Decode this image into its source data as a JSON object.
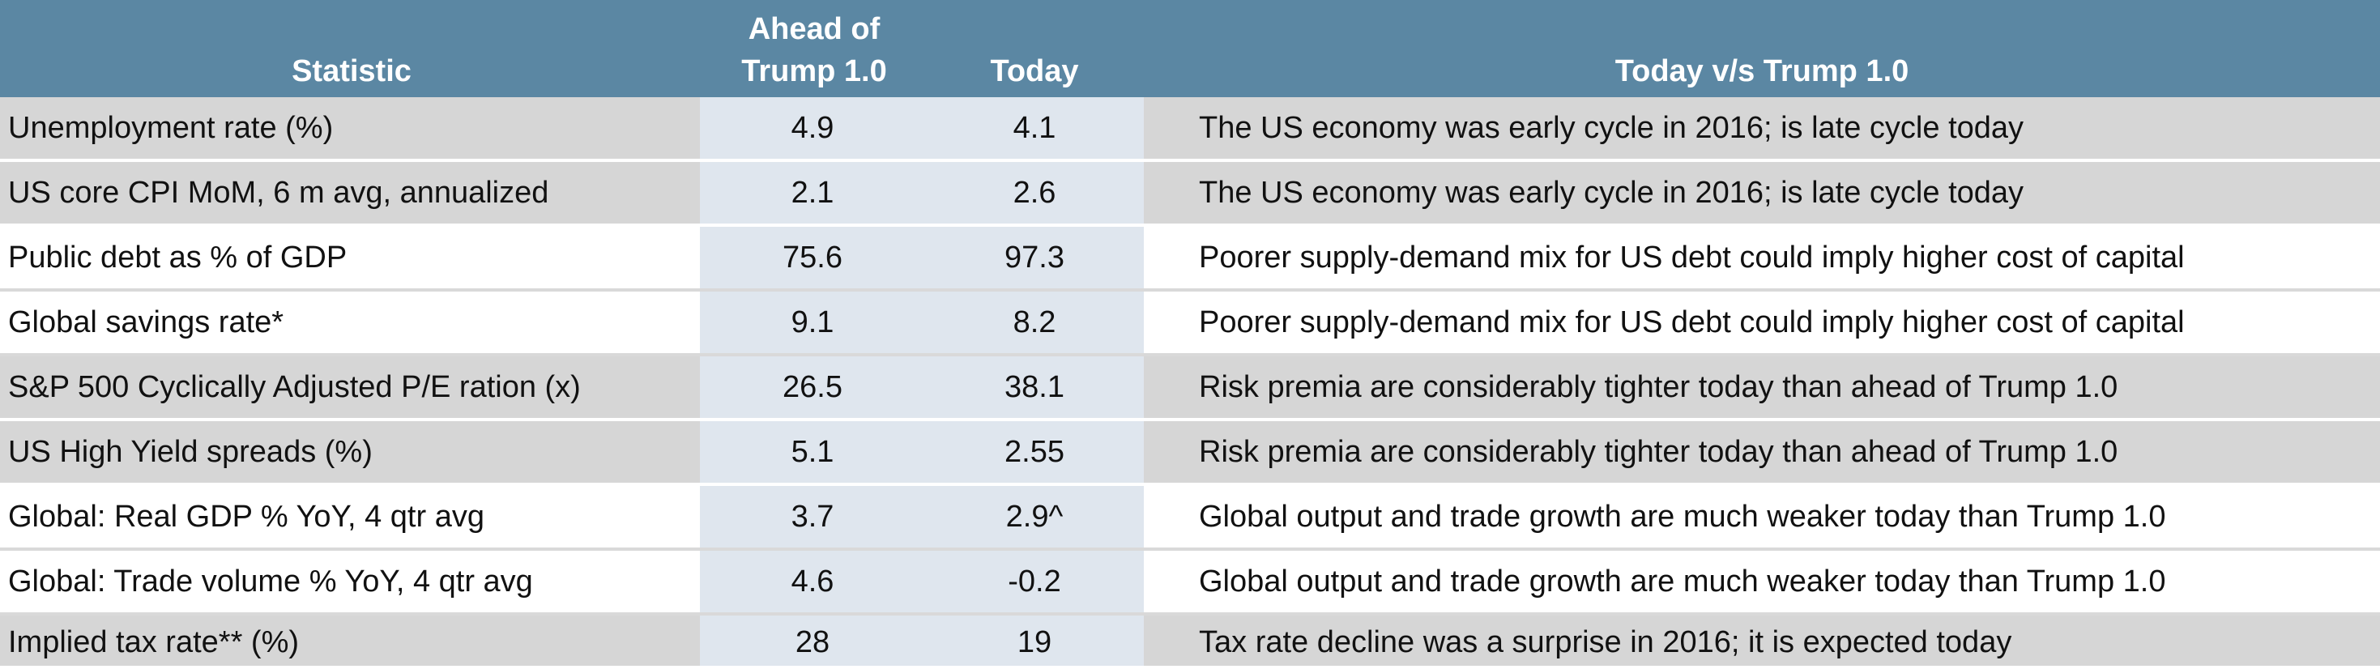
{
  "header": {
    "statistic": "Statistic",
    "ahead_line1": "Ahead of",
    "ahead_line2": "Trump 1.0",
    "today": "Today",
    "comparison": "Today v/s Trump 1.0"
  },
  "rows": [
    {
      "statistic": "Unemployment  rate (%)",
      "ahead": "4.9",
      "today": "4.1",
      "comparison": "The US economy was early cycle in 2016; is late cycle today"
    },
    {
      "statistic": "US core CPI MoM, 6 m avg, annualized",
      "ahead": "2.1",
      "today": "2.6",
      "comparison": "The US economy was early cycle in 2016; is late cycle today"
    },
    {
      "statistic": "Public debt as % of GDP",
      "ahead": "75.6",
      "today": "97.3",
      "comparison": "Poorer supply-demand mix for US debt could imply higher cost of capital"
    },
    {
      "statistic": "Global savings rate*",
      "ahead": "9.1",
      "today": "8.2",
      "comparison": "Poorer supply-demand mix for US debt could imply higher cost of capital"
    },
    {
      "statistic": "S&P 500 Cyclically Adjusted P/E ration (x)",
      "ahead": "26.5",
      "today": "38.1",
      "comparison": "Risk premia are considerably tighter today than ahead of Trump 1.0"
    },
    {
      "statistic": "US High Yield spreads (%)",
      "ahead": "5.1",
      "today": "2.55",
      "comparison": "Risk premia are considerably tighter today than ahead of Trump 1.0"
    },
    {
      "statistic": "Global: Real GDP % YoY, 4 qtr avg",
      "ahead": "3.7",
      "today": "2.9^",
      "comparison": "Global output and trade growth are much weaker today than Trump 1.0"
    },
    {
      "statistic": "Global: Trade volume % YoY, 4 qtr avg",
      "ahead": "4.6",
      "today": "-0.2",
      "comparison": "Global output and trade growth are much weaker today than Trump 1.0"
    },
    {
      "statistic": "Implied tax rate** (%)",
      "ahead": "28",
      "today": "19",
      "comparison": "Tax rate decline was a surprise in 2016; it is expected today"
    }
  ],
  "colors": {
    "header_bg": "#5b87a3",
    "shaded_row": "#d6d6d6",
    "value_col_bg": "#dfe6ee"
  }
}
